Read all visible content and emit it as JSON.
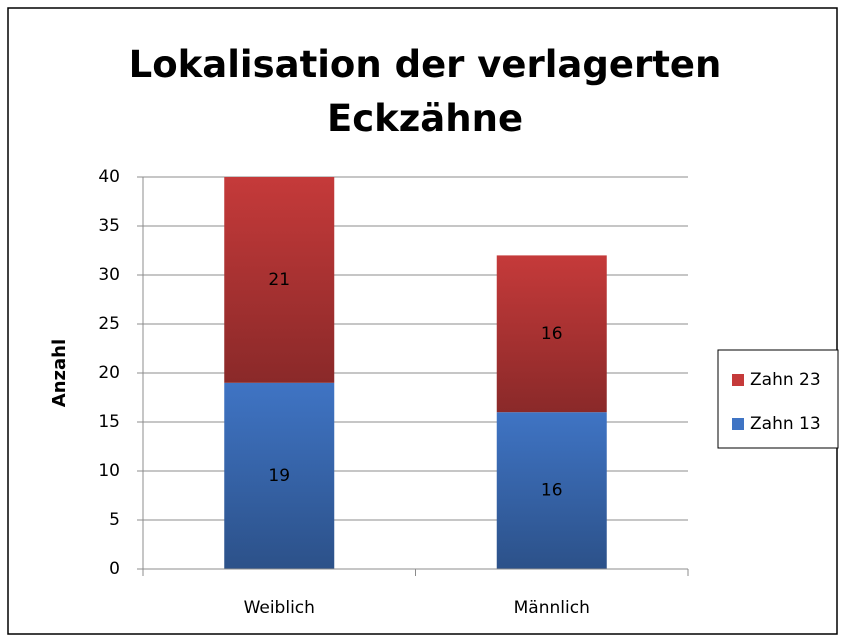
{
  "chart_data": {
    "type": "stacked_bar",
    "title": "Lokalisation der verlagerten Eckzähne",
    "y_label": "Anzahl",
    "categories": [
      "Weiblich",
      "Männlich"
    ],
    "series": [
      {
        "name": "Zahn 13",
        "color": "#3f74c4",
        "values": [
          19,
          16
        ]
      },
      {
        "name": "Zahn 23",
        "color": "#c53a3a",
        "values": [
          21,
          16
        ]
      }
    ],
    "ylim": [
      0,
      40
    ],
    "yticks": [
      0,
      5,
      10,
      15,
      20,
      25,
      30,
      35,
      40
    ],
    "grid": true,
    "legend": "right"
  }
}
